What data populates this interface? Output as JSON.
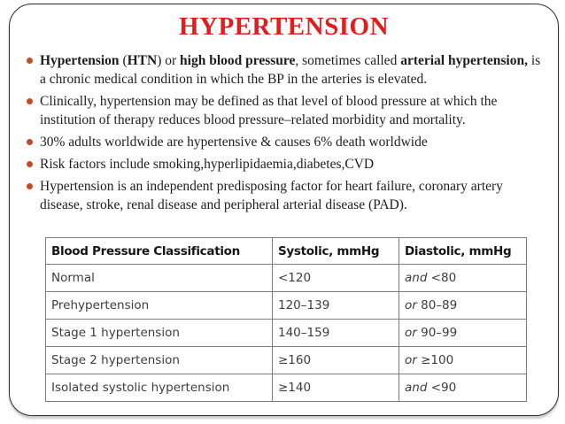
{
  "slide": {
    "title": "HYPERTENSION"
  },
  "colors": {
    "title_red": "#e11d1d",
    "bullet_dot": "#bf4d28",
    "body_text": "#1d1d1d",
    "table_border": "#7d7d7d",
    "table_text": "#3d3d3d",
    "slide_border": "#2d2d2d"
  },
  "bullets": [
    {
      "segments": [
        {
          "text": "Hypertension",
          "bold": true
        },
        {
          "text": " (",
          "bold": false
        },
        {
          "text": "HTN",
          "bold": true
        },
        {
          "text": ") or ",
          "bold": false
        },
        {
          "text": "high blood pressure",
          "bold": true
        },
        {
          "text": ", sometimes called ",
          "bold": false
        },
        {
          "text": "arterial hypertension,",
          "bold": true
        },
        {
          "text": " is a chronic medical condition in which the BP in the arteries is elevated.",
          "bold": false
        }
      ]
    },
    {
      "segments": [
        {
          "text": "Clinically, hypertension may be defined as that level of blood pressure at which the institution of therapy reduces blood pressure–related morbidity and mortality.",
          "bold": false
        }
      ]
    },
    {
      "segments": [
        {
          "text": "30% adults worldwide are hypertensive & causes 6% death worldwide",
          "bold": false
        }
      ]
    },
    {
      "segments": [
        {
          "text": "Risk factors include smoking,hyperlipidaemia,diabetes,CVD",
          "bold": false
        }
      ]
    },
    {
      "segments": [
        {
          "text": "Hypertension is an independent predisposing factor for heart failure, coronary artery disease, stroke, renal disease and peripheral arterial disease (PAD).",
          "bold": false
        }
      ]
    }
  ],
  "table": {
    "headers": [
      "Blood Pressure Classification",
      "Systolic, mmHg",
      "Diastolic, mmHg"
    ],
    "rows": [
      {
        "classification": "Normal",
        "systolic": "<120",
        "diastolic_conj": "and",
        "diastolic": "<80"
      },
      {
        "classification": "Prehypertension",
        "systolic": "120–139",
        "diastolic_conj": "or",
        "diastolic": "80–89"
      },
      {
        "classification": "Stage 1 hypertension",
        "systolic": "140–159",
        "diastolic_conj": "or",
        "diastolic": "90–99"
      },
      {
        "classification": "Stage 2 hypertension",
        "systolic": "≥160",
        "diastolic_conj": "or",
        "diastolic": "≥100"
      },
      {
        "classification": "Isolated systolic hypertension",
        "systolic": "≥140",
        "diastolic_conj": "and",
        "diastolic": "<90"
      }
    ]
  }
}
